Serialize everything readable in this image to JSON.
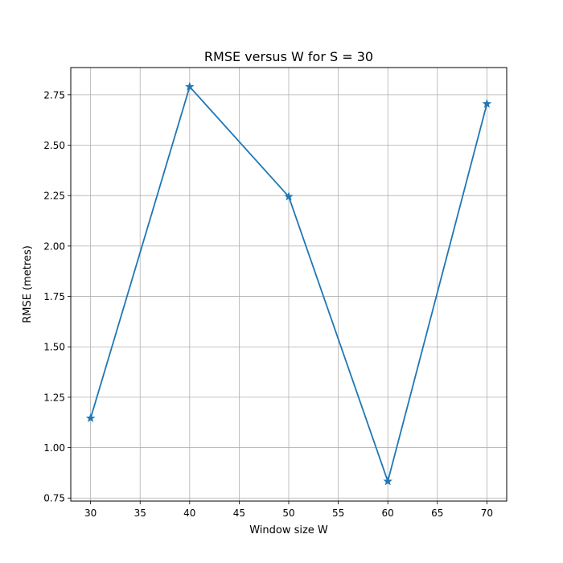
{
  "chart_data": {
    "type": "line",
    "title": "RMSE versus W for S = 30",
    "xlabel": "Window size W",
    "ylabel": "RMSE (metres)",
    "x": [
      30,
      40,
      50,
      60,
      70
    ],
    "series": [
      {
        "values": [
          1.146,
          2.79,
          2.245,
          0.833,
          2.705
        ],
        "marker": "star",
        "color": "#1f77b4"
      }
    ],
    "xlim": [
      28,
      72
    ],
    "ylim": [
      0.735,
      2.885
    ],
    "xticks": [
      "30",
      "35",
      "40",
      "45",
      "50",
      "55",
      "60",
      "65",
      "70"
    ],
    "yticks": [
      "0.75",
      "1.00",
      "1.25",
      "1.50",
      "1.75",
      "2.00",
      "2.25",
      "2.50",
      "2.75"
    ],
    "grid": true,
    "legend": "none"
  }
}
